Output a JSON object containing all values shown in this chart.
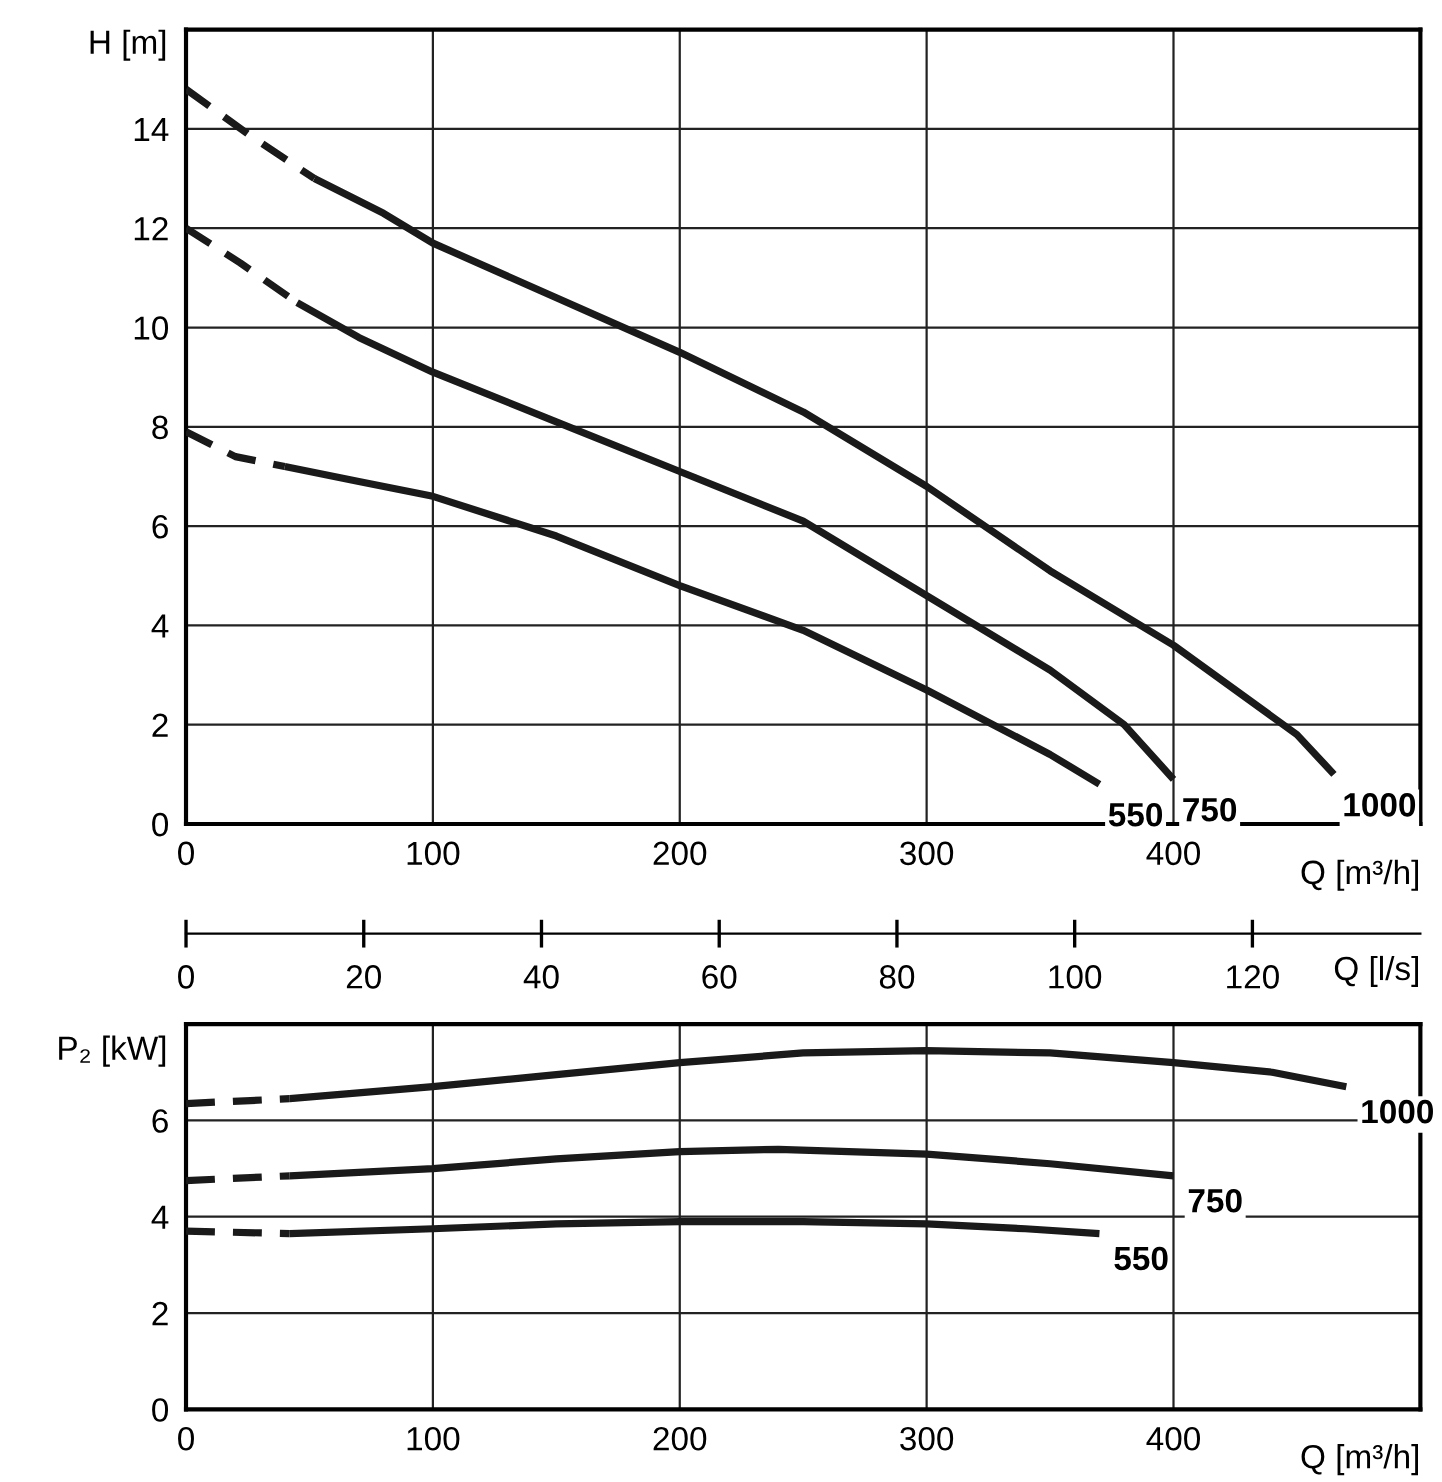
{
  "chart_data": [
    {
      "type": "line",
      "ylabel": "H [m]",
      "xlabel": "Q [m³/h]",
      "x2label": "Q [l/s]",
      "xlim": [
        0,
        500
      ],
      "xticks": [
        0,
        100,
        200,
        300,
        400
      ],
      "ylim": [
        0,
        16
      ],
      "yticks": [
        0,
        2,
        4,
        6,
        8,
        10,
        12,
        14
      ],
      "x2lim": [
        0,
        138.9
      ],
      "x2ticks": [
        0,
        20,
        40,
        60,
        80,
        100,
        120
      ],
      "grid": true,
      "legend": false,
      "marker": "none",
      "series": [
        {
          "color": "#1a1a1a",
          "line_style": "dashed",
          "x": [
            0,
            25,
            52
          ],
          "values": [
            14.8,
            13.9,
            13.0
          ]
        },
        {
          "name": "1000",
          "color": "#1a1a1a",
          "line_style": "solid",
          "x": [
            52,
            80,
            100,
            150,
            200,
            250,
            300,
            350,
            400,
            450,
            465
          ],
          "values": [
            13.0,
            12.3,
            11.7,
            10.6,
            9.5,
            8.3,
            6.8,
            5.1,
            3.6,
            1.8,
            1.0
          ]
        },
        {
          "color": "#1a1a1a",
          "line_style": "dashed",
          "x": [
            0,
            22,
            45
          ],
          "values": [
            12.0,
            11.3,
            10.5
          ]
        },
        {
          "name": "750",
          "color": "#1a1a1a",
          "line_style": "solid",
          "x": [
            45,
            70,
            100,
            150,
            200,
            250,
            300,
            350,
            380,
            400
          ],
          "values": [
            10.5,
            9.8,
            9.1,
            8.1,
            7.1,
            6.1,
            4.6,
            3.1,
            2.0,
            0.9
          ]
        },
        {
          "color": "#1a1a1a",
          "line_style": "dashed",
          "x": [
            0,
            20,
            40
          ],
          "values": [
            7.9,
            7.4,
            7.2
          ]
        },
        {
          "name": "550",
          "color": "#1a1a1a",
          "line_style": "solid",
          "x": [
            40,
            70,
            100,
            150,
            200,
            250,
            300,
            350,
            370
          ],
          "values": [
            7.2,
            6.9,
            6.6,
            5.8,
            4.8,
            3.9,
            2.7,
            1.4,
            0.8
          ]
        }
      ]
    },
    {
      "type": "line",
      "ylabel": "P₂ [kW]",
      "xlabel": "Q [m³/h]",
      "xlim": [
        0,
        500
      ],
      "xticks": [
        0,
        100,
        200,
        300,
        400
      ],
      "ylim": [
        0,
        8
      ],
      "yticks": [
        0,
        2,
        4,
        6
      ],
      "grid": true,
      "legend": false,
      "marker": "none",
      "series": [
        {
          "color": "#1a1a1a",
          "line_style": "dashed",
          "x": [
            0,
            42
          ],
          "values": [
            6.35,
            6.45
          ]
        },
        {
          "name": "1000",
          "color": "#1a1a1a",
          "line_style": "solid",
          "x": [
            42,
            100,
            150,
            200,
            250,
            300,
            350,
            400,
            440,
            470
          ],
          "values": [
            6.45,
            6.7,
            6.95,
            7.2,
            7.4,
            7.45,
            7.4,
            7.2,
            7.0,
            6.7
          ]
        },
        {
          "color": "#1a1a1a",
          "line_style": "dashed",
          "x": [
            0,
            42
          ],
          "values": [
            4.75,
            4.85
          ]
        },
        {
          "name": "750",
          "color": "#1a1a1a",
          "line_style": "solid",
          "x": [
            42,
            100,
            150,
            200,
            240,
            300,
            350,
            400
          ],
          "values": [
            4.85,
            5.0,
            5.2,
            5.35,
            5.4,
            5.3,
            5.1,
            4.85
          ]
        },
        {
          "color": "#1a1a1a",
          "line_style": "dashed",
          "x": [
            0,
            42
          ],
          "values": [
            3.7,
            3.65
          ]
        },
        {
          "name": "550",
          "color": "#1a1a1a",
          "line_style": "solid",
          "x": [
            42,
            100,
            150,
            200,
            250,
            300,
            340,
            370
          ],
          "values": [
            3.65,
            3.75,
            3.85,
            3.9,
            3.9,
            3.85,
            3.75,
            3.65
          ]
        }
      ]
    }
  ]
}
